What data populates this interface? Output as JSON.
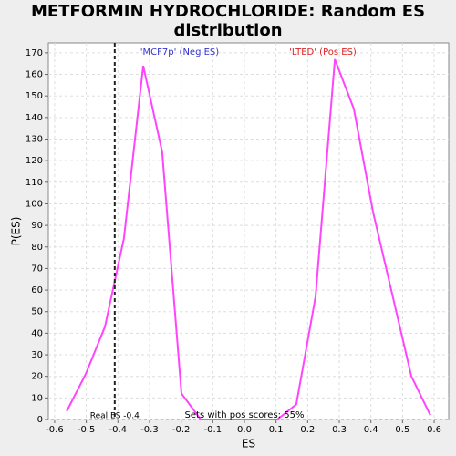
{
  "chart_data": {
    "type": "line",
    "title": "METFORMIN HYDROCHLORIDE: Random ES distribution",
    "x_label": "ES",
    "y_label": "P(ES)",
    "x": [
      -0.562,
      -0.502,
      -0.441,
      -0.381,
      -0.32,
      -0.26,
      -0.199,
      -0.138,
      -0.077,
      -0.017,
      0.043,
      0.104,
      0.164,
      0.225,
      0.286,
      0.346,
      0.407,
      0.528,
      0.588
    ],
    "series": [
      {
        "name": "ES distribution",
        "color": "#ff44ff",
        "values": [
          3.8,
          21,
          43,
          84,
          164,
          124,
          12,
          0,
          0,
          0,
          0,
          0,
          7,
          57,
          167,
          144,
          96,
          20,
          2
        ]
      }
    ],
    "xlim": [
      -0.62,
      0.646
    ],
    "ylim": [
      0,
      174.6
    ],
    "xticks": [
      -0.6,
      -0.5,
      -0.4,
      -0.3,
      -0.2,
      -0.1,
      {
        "value": 0,
        "label": "0.0"
      },
      0.1,
      0.2,
      0.3,
      0.4,
      0.5,
      0.6
    ],
    "yticks": [
      0,
      10,
      20,
      30,
      40,
      50,
      60,
      70,
      80,
      90,
      100,
      110,
      120,
      130,
      140,
      150,
      160,
      170
    ],
    "grid": true,
    "real_es": {
      "value": -0.41,
      "label": "Real ES -0.4"
    },
    "neg_label": {
      "text": "'MCF7p' (Neg ES)",
      "color": "#3333cc"
    },
    "pos_label": {
      "text": "'LTED' (Pos ES)",
      "color": "#dd2222"
    },
    "annotation": "Sets with pos scores: 55%"
  }
}
